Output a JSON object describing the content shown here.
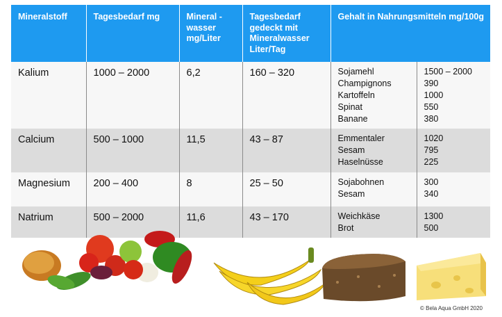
{
  "headers": {
    "mineral": "Mineralstoff",
    "daily": "Tagesbedarf mg",
    "water": "Mineral - wasser mg/Liter",
    "covered": "Tagesbedarf gedeckt mit Mineralwasser Liter/Tag",
    "content": "Gehalt in Nahrungsmitteln mg/100g"
  },
  "rows": [
    {
      "mineral": "Kalium",
      "daily": "1000 – 2000",
      "water": "6,2",
      "covered": "160 – 320",
      "foods": [
        "Sojamehl",
        "Champignons",
        "Kartoffeln",
        "Spinat",
        "Banane"
      ],
      "values": [
        "1500 – 2000",
        "390",
        "1000",
        "550",
        "380"
      ]
    },
    {
      "mineral": "Calcium",
      "daily": "500 – 1000",
      "water": "11,5",
      "covered": "43 – 87",
      "foods": [
        "Emmentaler",
        "Sesam",
        "Haselnüsse"
      ],
      "values": [
        "1020",
        "795",
        "225"
      ]
    },
    {
      "mineral": "Magnesium",
      "daily": "200 – 400",
      "water": "8",
      "covered": "25 – 50",
      "foods": [
        "Sojabohnen",
        "Sesam"
      ],
      "values": [
        "300",
        "340"
      ]
    },
    {
      "mineral": "Natrium",
      "daily": "500 – 2000",
      "water": "11,6",
      "covered": "43 – 170",
      "foods": [
        "Weichkäse",
        "Brot"
      ],
      "values": [
        "1300",
        "500"
      ]
    }
  ],
  "copyright": "© Bela Aqua GmbH 2020",
  "colors": {
    "header_bg": "#1e9af0",
    "row_light": "#f7f7f7",
    "row_dark": "#dcdcdc"
  }
}
